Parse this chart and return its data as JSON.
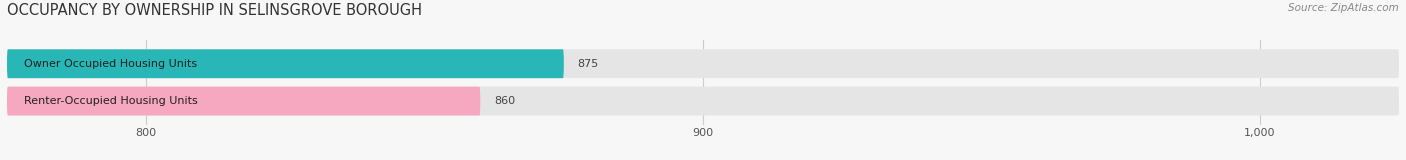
{
  "title": "OCCUPANCY BY OWNERSHIP IN SELINSGROVE BOROUGH",
  "source": "Source: ZipAtlas.com",
  "categories": [
    "Owner Occupied Housing Units",
    "Renter-Occupied Housing Units"
  ],
  "values": [
    875,
    860
  ],
  "bar_colors": [
    "#29b6b6",
    "#f5a8bf"
  ],
  "xlim": [
    775,
    1025
  ],
  "xticks": [
    800,
    900,
    1000
  ],
  "xtick_labels": [
    "800",
    "900",
    "1,000"
  ],
  "background_color": "#f7f7f7",
  "bar_bg_color": "#e5e5e5",
  "title_fontsize": 10.5,
  "label_fontsize": 8,
  "value_fontsize": 8,
  "source_fontsize": 7.5
}
